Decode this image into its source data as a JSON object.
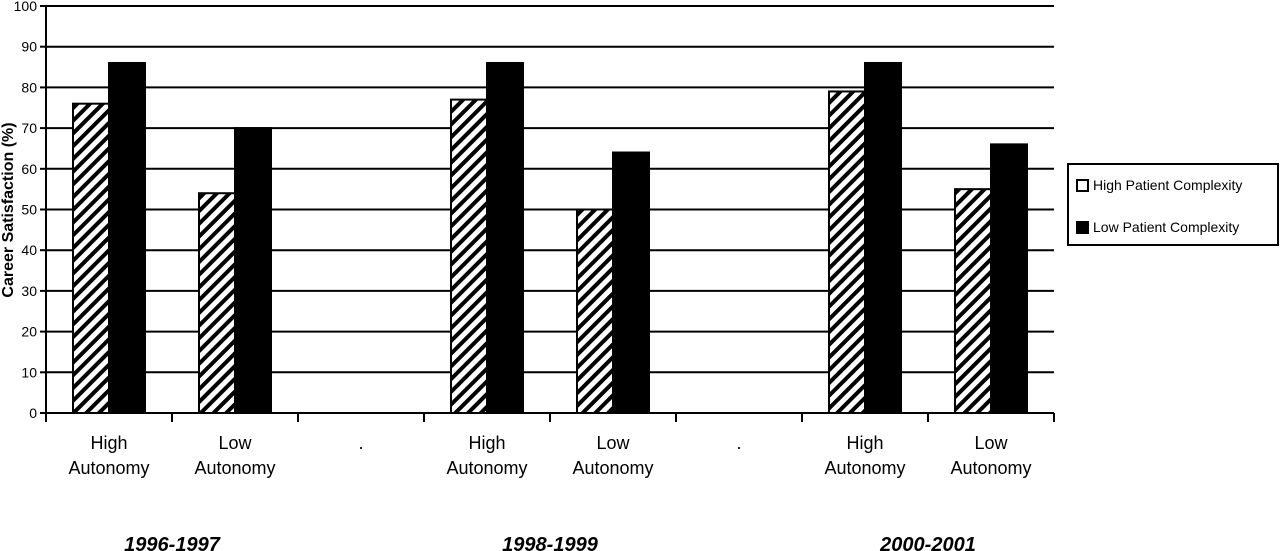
{
  "chart_data": {
    "type": "bar",
    "ylabel": "Career Satisfaction (%)",
    "xlabel": "",
    "ylim": [
      0,
      100
    ],
    "yticks": [
      0,
      10,
      20,
      30,
      40,
      50,
      60,
      70,
      80,
      90,
      100
    ],
    "grid": true,
    "legend_position": "right",
    "categories": [
      [
        "High",
        "Autonomy"
      ],
      [
        "Low",
        "Autonomy"
      ],
      [
        "."
      ],
      [
        "High",
        "Autonomy"
      ],
      [
        "Low",
        "Autonomy"
      ],
      [
        "."
      ],
      [
        "High",
        "Autonomy"
      ],
      [
        "Low",
        "Autonomy"
      ]
    ],
    "groups": [
      "1996-1997",
      "1998-1999",
      "2000-2001"
    ],
    "series": [
      {
        "name": "High Patient Complexity",
        "pattern": "hatched",
        "color": "#ffffff",
        "values": [
          76,
          54,
          null,
          77,
          50,
          null,
          79,
          55
        ]
      },
      {
        "name": "Low Patient Complexity",
        "pattern": "solid",
        "color": "#000000",
        "values": [
          86,
          70,
          null,
          86,
          64,
          null,
          86,
          66
        ]
      }
    ]
  }
}
